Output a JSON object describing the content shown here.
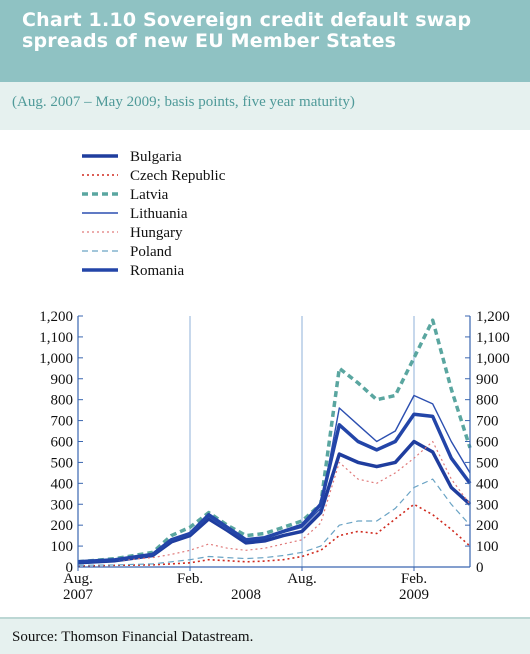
{
  "header": {
    "title": "Chart 1.10 Sovereign credit default swap spreads of new EU Member States",
    "subtitle": "(Aug. 2007 – May 2009; basis points, five year maturity)"
  },
  "source": "Source: Thomson Financial Datastream.",
  "chart_data": {
    "type": "line",
    "title": "Chart 1.10 Sovereign credit default swap spreads of new EU Member States",
    "subtitle": "(Aug. 2007 – May 2009; basis points, five year maturity)",
    "ylim": [
      0,
      1200
    ],
    "yticks": [
      "0",
      "100",
      "200",
      "300",
      "400",
      "500",
      "600",
      "700",
      "800",
      "900",
      "1,000",
      "1,100",
      "1,200"
    ],
    "xlim": [
      "2007-08",
      "2009-05"
    ],
    "xticks": [
      {
        "date": "2007-08",
        "line1": "Aug.",
        "line2": "2007"
      },
      {
        "date": "2008-02",
        "line1": "Feb.",
        "line2": ""
      },
      {
        "date": "2008-05",
        "line1": "",
        "line2": "2008"
      },
      {
        "date": "2008-08",
        "line1": "Aug.",
        "line2": ""
      },
      {
        "date": "2009-02",
        "line1": "Feb.",
        "line2": "2009"
      }
    ],
    "gridlines_x": [
      "2008-02",
      "2008-08",
      "2009-02"
    ],
    "legend_position": "top-left",
    "series": [
      {
        "name": "Bulgaria",
        "color": "#1f3d9e",
        "style": "solid",
        "width": 3.5,
        "x": [
          "2007-08",
          "2007-10",
          "2007-12",
          "2008-01",
          "2008-02",
          "2008-03",
          "2008-04",
          "2008-05",
          "2008-06",
          "2008-07",
          "2008-08",
          "2008-09",
          "2008-10",
          "2008-11",
          "2008-12",
          "2009-01",
          "2009-02",
          "2009-03",
          "2009-04",
          "2009-05"
        ],
        "values": [
          20,
          30,
          55,
          120,
          150,
          230,
          175,
          115,
          125,
          150,
          170,
          260,
          540,
          500,
          480,
          500,
          600,
          550,
          380,
          300
        ]
      },
      {
        "name": "Czech Republic",
        "color": "#d02a1e",
        "style": "dotted",
        "width": 1.6,
        "x": [
          "2007-08",
          "2007-10",
          "2007-12",
          "2008-01",
          "2008-02",
          "2008-03",
          "2008-04",
          "2008-05",
          "2008-06",
          "2008-07",
          "2008-08",
          "2008-09",
          "2008-10",
          "2008-11",
          "2008-12",
          "2009-01",
          "2009-02",
          "2009-03",
          "2009-04",
          "2009-05"
        ],
        "values": [
          5,
          8,
          10,
          15,
          20,
          35,
          30,
          25,
          28,
          35,
          50,
          80,
          150,
          170,
          160,
          230,
          300,
          250,
          180,
          100
        ]
      },
      {
        "name": "Latvia",
        "color": "#5aa6a0",
        "style": "dashed",
        "width": 3.5,
        "x": [
          "2007-08",
          "2007-10",
          "2007-12",
          "2008-01",
          "2008-02",
          "2008-03",
          "2008-04",
          "2008-05",
          "2008-06",
          "2008-07",
          "2008-08",
          "2008-09",
          "2008-10",
          "2008-11",
          "2008-12",
          "2009-01",
          "2009-02",
          "2009-03",
          "2009-04",
          "2009-05"
        ],
        "values": [
          25,
          40,
          70,
          150,
          190,
          260,
          200,
          150,
          160,
          190,
          220,
          300,
          950,
          880,
          800,
          820,
          1000,
          1180,
          850,
          570
        ]
      },
      {
        "name": "Lithuania",
        "color": "#2c4fb0",
        "style": "solid",
        "width": 1.4,
        "x": [
          "2007-08",
          "2007-10",
          "2007-12",
          "2008-01",
          "2008-02",
          "2008-03",
          "2008-04",
          "2008-05",
          "2008-06",
          "2008-07",
          "2008-08",
          "2008-09",
          "2008-10",
          "2008-11",
          "2008-12",
          "2009-01",
          "2009-02",
          "2009-03",
          "2009-04",
          "2009-05"
        ],
        "values": [
          20,
          35,
          60,
          130,
          165,
          240,
          180,
          130,
          140,
          165,
          190,
          280,
          760,
          680,
          600,
          650,
          820,
          780,
          600,
          450
        ]
      },
      {
        "name": "Hungary",
        "color": "#e07a7a",
        "style": "dotted",
        "width": 1.2,
        "x": [
          "2007-08",
          "2007-10",
          "2007-12",
          "2008-01",
          "2008-02",
          "2008-03",
          "2008-04",
          "2008-05",
          "2008-06",
          "2008-07",
          "2008-08",
          "2008-09",
          "2008-10",
          "2008-11",
          "2008-12",
          "2009-01",
          "2009-02",
          "2009-03",
          "2009-04",
          "2009-05"
        ],
        "values": [
          25,
          30,
          45,
          60,
          80,
          110,
          90,
          80,
          90,
          110,
          130,
          210,
          500,
          420,
          400,
          450,
          520,
          600,
          420,
          300
        ]
      },
      {
        "name": "Poland",
        "color": "#6aa3c4",
        "style": "dashed",
        "width": 1.2,
        "x": [
          "2007-08",
          "2007-10",
          "2007-12",
          "2008-01",
          "2008-02",
          "2008-03",
          "2008-04",
          "2008-05",
          "2008-06",
          "2008-07",
          "2008-08",
          "2008-09",
          "2008-10",
          "2008-11",
          "2008-12",
          "2009-01",
          "2009-02",
          "2009-03",
          "2009-04",
          "2009-05"
        ],
        "values": [
          8,
          10,
          15,
          25,
          35,
          50,
          45,
          40,
          45,
          55,
          70,
          100,
          200,
          220,
          220,
          280,
          380,
          420,
          300,
          200
        ]
      },
      {
        "name": "Romania",
        "color": "#2345a8",
        "style": "solid",
        "width": 3.5,
        "x": [
          "2007-08",
          "2007-10",
          "2007-12",
          "2008-01",
          "2008-02",
          "2008-03",
          "2008-04",
          "2008-05",
          "2008-06",
          "2008-07",
          "2008-08",
          "2008-09",
          "2008-10",
          "2008-11",
          "2008-12",
          "2009-01",
          "2009-02",
          "2009-03",
          "2009-04",
          "2009-05"
        ],
        "values": [
          25,
          35,
          60,
          130,
          160,
          250,
          190,
          130,
          140,
          170,
          200,
          300,
          680,
          600,
          560,
          600,
          730,
          720,
          520,
          400
        ]
      }
    ]
  }
}
